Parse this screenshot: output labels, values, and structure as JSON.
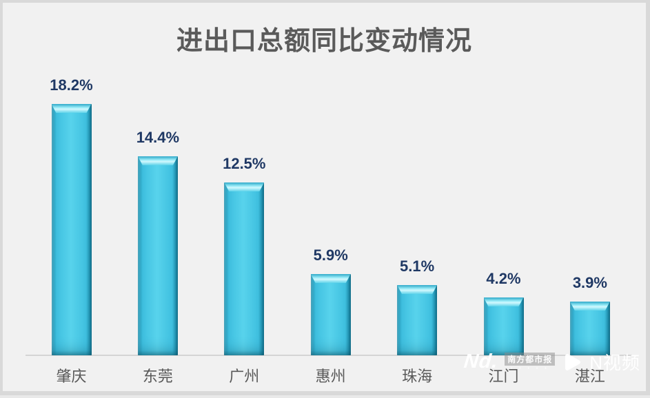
{
  "title": "进出口总额同比变动情况",
  "chart_data": {
    "type": "bar",
    "title": "进出口总额同比变动情况",
    "categories": [
      "肇庆",
      "东莞",
      "广州",
      "惠州",
      "珠海",
      "江门",
      "湛江"
    ],
    "values": [
      18.2,
      14.4,
      12.5,
      5.9,
      5.1,
      4.2,
      3.9
    ],
    "value_labels": [
      "18.2%",
      "14.4%",
      "12.5%",
      "5.9%",
      "5.1%",
      "4.2%",
      "3.9%"
    ],
    "xlabel": "",
    "ylabel": "",
    "ylim": [
      0,
      20
    ],
    "grid": false,
    "legend": "none",
    "bar_color": "#3fc0e0",
    "bar_edge_color": "#16809e",
    "value_label_color": "#1f3864",
    "category_label_color": "#595959",
    "baseline_color": "#d4d4d4",
    "background_color": "#f1f1f1",
    "title_color": "#5a5a5a"
  },
  "watermark": {
    "logo_text": "Nd.",
    "badge_text": "南方都市报",
    "dots": "• • • • •",
    "video_label": "N视频"
  }
}
